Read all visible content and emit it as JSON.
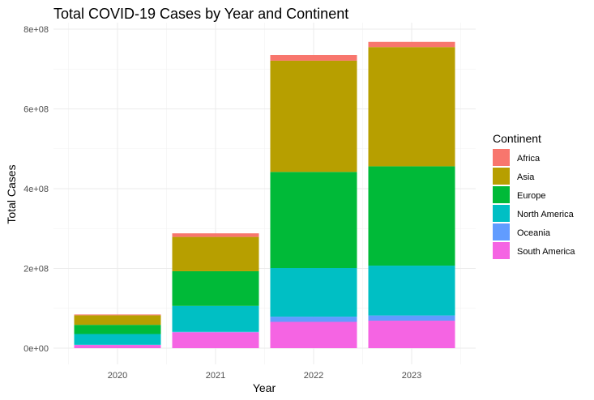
{
  "chart_data": {
    "type": "bar",
    "stacked": true,
    "title": "Total COVID-19 Cases by Year and Continent",
    "xlabel": "Year",
    "ylabel": "Total Cases",
    "categories": [
      "2020",
      "2021",
      "2022",
      "2023"
    ],
    "ylim": [
      0,
      800000000
    ],
    "yticks": [
      0,
      200000000,
      400000000,
      600000000,
      800000000
    ],
    "ytick_labels": [
      "0e+00",
      "2e+08",
      "4e+08",
      "6e+08",
      "8e+08"
    ],
    "grid": true,
    "legend": {
      "title": "Continent",
      "position": "right"
    },
    "series": [
      {
        "name": "South America",
        "color": "#F564E3",
        "values": [
          8000000,
          40000000,
          66000000,
          69000000
        ]
      },
      {
        "name": "Oceania",
        "color": "#619CFF",
        "values": [
          500000,
          1000000,
          13000000,
          13000000
        ]
      },
      {
        "name": "North America",
        "color": "#00BFC4",
        "values": [
          27000000,
          65000000,
          122000000,
          125000000
        ]
      },
      {
        "name": "Europe",
        "color": "#00BA38",
        "values": [
          23000000,
          87000000,
          241000000,
          249000000
        ]
      },
      {
        "name": "Asia",
        "color": "#B79F00",
        "values": [
          24000000,
          86000000,
          279000000,
          299000000
        ]
      },
      {
        "name": "Africa",
        "color": "#F8766D",
        "values": [
          2000000,
          9000000,
          14000000,
          13000000
        ]
      }
    ]
  }
}
